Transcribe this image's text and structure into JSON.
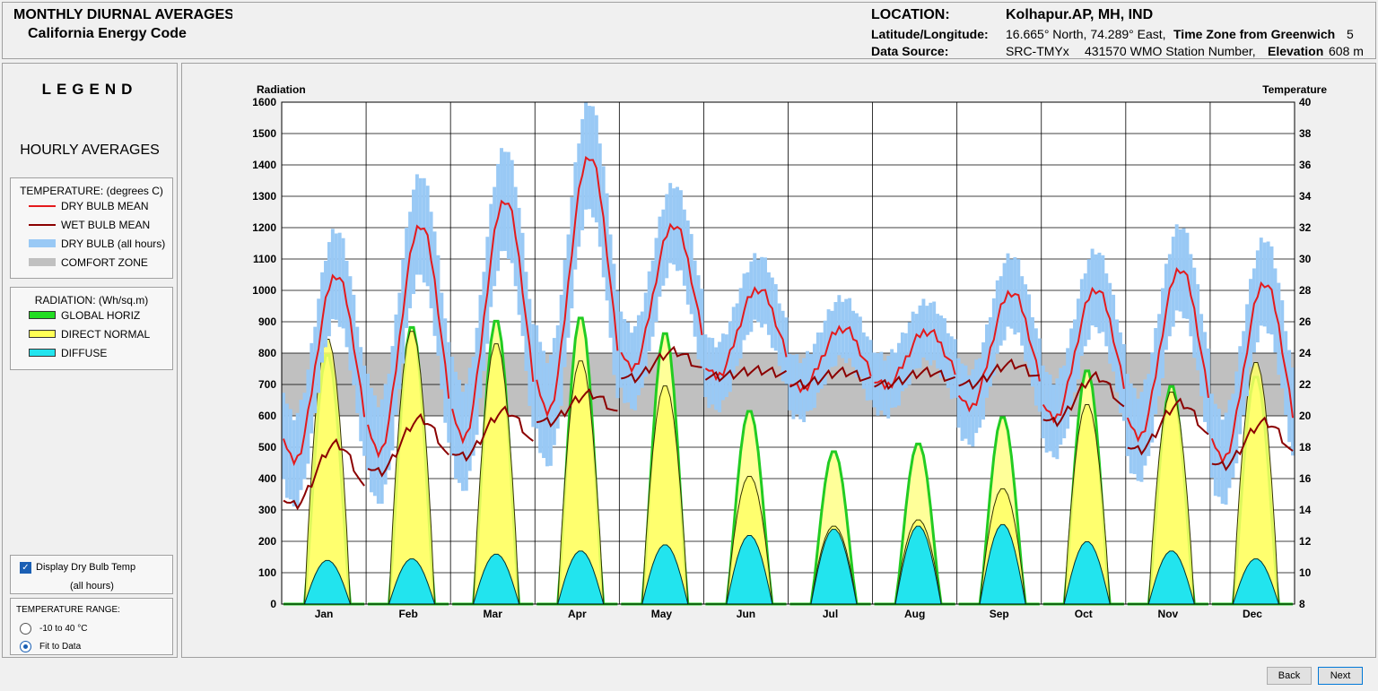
{
  "header": {
    "title": "MONTHLY DIURNAL AVERAGES",
    "subtitle": "California Energy Code",
    "location_label": "LOCATION:",
    "location_value": "Kolhapur.AP, MH, IND",
    "latlon_label": "Latitude/Longitude:",
    "latlon_value": "16.665° North, 74.289° East,",
    "timezone_label": "Time Zone from Greenwich",
    "timezone_value": "5",
    "source_label": "Data Source:",
    "source_value": "SRC-TMYx",
    "wmo_value": "431570 WMO Station Number,",
    "elevation_label": "Elevation",
    "elevation_value": "608 m"
  },
  "legend": {
    "title": "LEGEND",
    "hourly": "HOURLY AVERAGES",
    "temperature_heading": "TEMPERATURE: (degrees C)",
    "temperature_items": [
      {
        "label": "DRY BULB MEAN",
        "color": "#e41a1c"
      },
      {
        "label": "WET BULB MEAN",
        "color": "#8b0000"
      },
      {
        "label": "DRY BULB (all hours)",
        "color": "#99c9f5"
      },
      {
        "label": "COMFORT ZONE",
        "color": "#c0c0c0"
      }
    ],
    "radiation_heading": "RADIATION: (Wh/sq.m)",
    "radiation_items": [
      {
        "label": "GLOBAL HORIZ",
        "color": "#22dd22"
      },
      {
        "label": "DIRECT NORMAL",
        "color": "#ffff55"
      },
      {
        "label": "DIFFUSE",
        "color": "#22e4ee"
      }
    ]
  },
  "options": {
    "display_dry_bulb": "Display Dry Bulb Temp",
    "display_dry_bulb_sub": "(all hours)",
    "temp_range_heading": "TEMPERATURE RANGE:",
    "range_option_1": "-10 to 40 °C",
    "range_option_2": "Fit to Data"
  },
  "buttons": {
    "back": "Back",
    "next": "Next"
  },
  "chart_data": {
    "type": "line",
    "left_axis_label": "Radiation",
    "right_axis_label": "Temperature",
    "left_ylim": [
      0,
      1600
    ],
    "left_ticks": [
      "0",
      "100",
      "200",
      "300",
      "400",
      "500",
      "600",
      "700",
      "800",
      "900",
      "1000",
      "1100",
      "1200",
      "1300",
      "1400",
      "1500",
      "1600"
    ],
    "right_ylim": [
      8,
      40
    ],
    "right_ticks": [
      "8",
      "10",
      "12",
      "14",
      "16",
      "18",
      "20",
      "22",
      "24",
      "26",
      "28",
      "30",
      "32",
      "34",
      "36",
      "38",
      "40"
    ],
    "comfort_zone": [
      20,
      24
    ],
    "months": [
      "Jan",
      "Feb",
      "Mar",
      "Apr",
      "May",
      "Jun",
      "Jul",
      "Aug",
      "Sep",
      "Oct",
      "Nov",
      "Dec"
    ],
    "global_horiz_peak": [
      800,
      890,
      910,
      920,
      870,
      620,
      490,
      515,
      600,
      750,
      700,
      730
    ],
    "direct_normal_peak": [
      850,
      875,
      835,
      780,
      700,
      410,
      250,
      270,
      370,
      640,
      680,
      775
    ],
    "diffuse_peak": [
      140,
      145,
      160,
      170,
      190,
      220,
      240,
      250,
      255,
      200,
      170,
      145
    ],
    "dry_bulb_min": [
      17.1,
      17.6,
      18.5,
      20.2,
      23.0,
      22.5,
      21.7,
      21.9,
      20.5,
      19.8,
      18.6,
      17.2
    ],
    "dry_bulb_max": [
      29.0,
      32.2,
      33.8,
      36.6,
      32.2,
      28.1,
      25.6,
      25.4,
      27.9,
      28.1,
      29.4,
      28.5
    ],
    "wet_bulb_min": [
      14.3,
      16.4,
      17.4,
      19.6,
      22.4,
      22.5,
      22.0,
      22.0,
      22.0,
      19.6,
      17.8,
      16.8
    ],
    "wet_bulb_max": [
      18.2,
      19.8,
      20.3,
      21.4,
      24.1,
      22.9,
      22.8,
      22.8,
      23.3,
      22.5,
      20.8,
      19.6
    ]
  }
}
